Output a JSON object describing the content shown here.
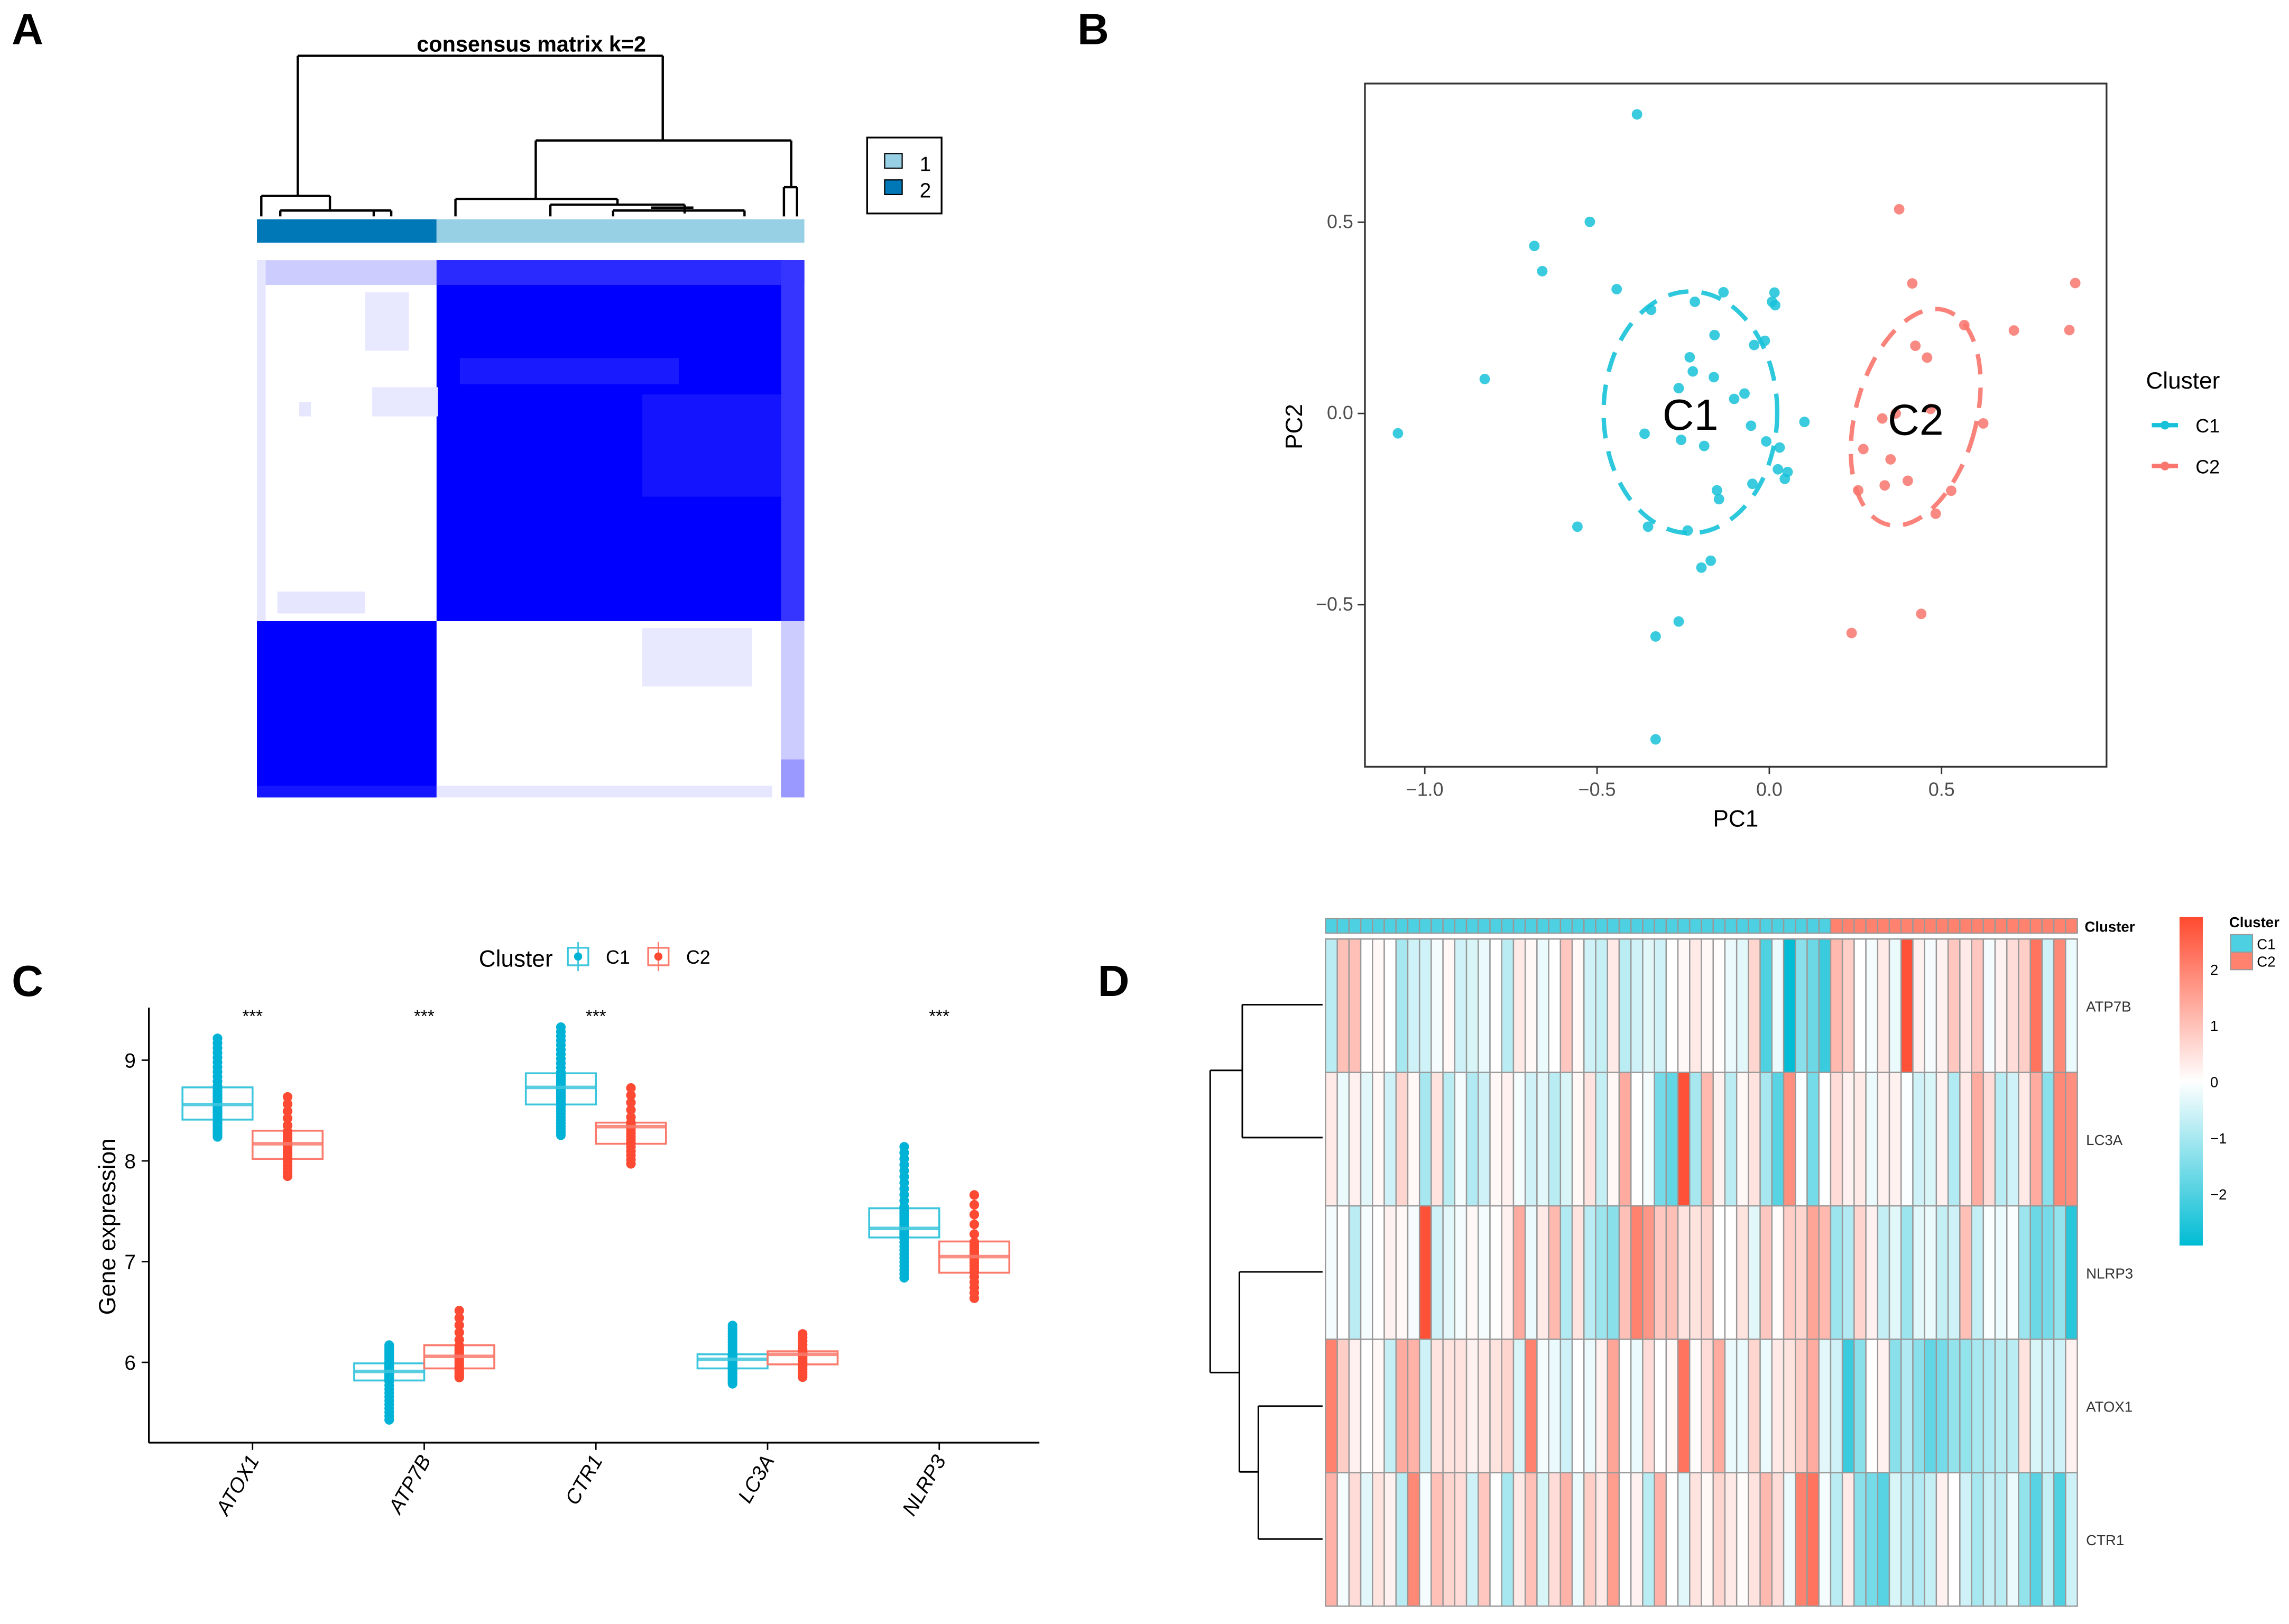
{
  "panels": {
    "a": "A",
    "b": "B",
    "c": "C",
    "d": "D"
  },
  "chart_data": [
    {
      "type": "heatmap",
      "title": "consensus matrix k=2",
      "legend": {
        "items": [
          {
            "label": "1",
            "color": "#97cfe4"
          },
          {
            "label": "2",
            "color": "#0077b6"
          }
        ],
        "placement": "right"
      },
      "cluster_order": [
        "2",
        "1"
      ],
      "cluster_sizes": {
        "1": 43,
        "2": 21
      },
      "color_high": "#0000ff",
      "color_low": "#ffffff"
    },
    {
      "type": "scatter",
      "xlabel": "PC1",
      "ylabel": "PC2",
      "xlim": [
        -1.17,
        0.98
      ],
      "ylim": [
        -0.93,
        0.86
      ],
      "x_ticks": [
        "−1.0",
        "−0.5",
        "0.0",
        "0.5"
      ],
      "x_tick_values": [
        -1.0,
        -0.5,
        0.0,
        0.5
      ],
      "y_ticks": [
        "−0.5",
        "0.0",
        "0.5"
      ],
      "y_tick_values": [
        -0.5,
        0.0,
        0.5
      ],
      "legend": {
        "title": "Cluster",
        "placement": "right",
        "items": [
          "C1",
          "C2"
        ]
      },
      "colors": {
        "C1": "#17c2d9",
        "C2": "#f8766d"
      },
      "grid": false,
      "series": [
        {
          "name": "C1",
          "label": "C1",
          "ellipse": {
            "cx": -0.229,
            "cy": 0.003,
            "rx": 0.252,
            "ry": 0.316,
            "angle": 0
          },
          "points": [
            [
              -0.384,
              0.782
            ],
            [
              -0.521,
              0.501
            ],
            [
              -0.682,
              0.438
            ],
            [
              -0.659,
              0.372
            ],
            [
              -0.443,
              0.325
            ],
            [
              -0.343,
              0.271
            ],
            [
              -0.216,
              0.292
            ],
            [
              -0.133,
              0.317
            ],
            [
              0.015,
              0.316
            ],
            [
              0.008,
              0.292
            ],
            [
              0.017,
              0.283
            ],
            [
              -0.159,
              0.205
            ],
            [
              -0.044,
              0.179
            ],
            [
              -0.013,
              0.19
            ],
            [
              -0.231,
              0.147
            ],
            [
              -0.222,
              0.11
            ],
            [
              -0.161,
              0.095
            ],
            [
              -0.263,
              0.066
            ],
            [
              -0.102,
              0.038
            ],
            [
              -0.072,
              0.052
            ],
            [
              -0.826,
              0.09
            ],
            [
              -1.078,
              -0.052
            ],
            [
              -0.362,
              -0.053
            ],
            [
              -0.256,
              -0.069
            ],
            [
              -0.189,
              -0.085
            ],
            [
              -0.053,
              -0.032
            ],
            [
              0.102,
              -0.022
            ],
            [
              -0.009,
              -0.073
            ],
            [
              0.03,
              -0.089
            ],
            [
              0.025,
              -0.146
            ],
            [
              0.053,
              -0.153
            ],
            [
              0.045,
              -0.171
            ],
            [
              -0.049,
              -0.184
            ],
            [
              -0.152,
              -0.201
            ],
            [
              -0.146,
              -0.224
            ],
            [
              -0.557,
              -0.296
            ],
            [
              -0.352,
              -0.296
            ],
            [
              -0.237,
              -0.306
            ],
            [
              -0.17,
              -0.385
            ],
            [
              -0.197,
              -0.403
            ],
            [
              -0.263,
              -0.544
            ],
            [
              -0.33,
              -0.583
            ],
            [
              -0.33,
              -0.852
            ]
          ]
        },
        {
          "name": "C2",
          "label": "C2",
          "ellipse": {
            "cx": 0.425,
            "cy": -0.01,
            "rx": 0.175,
            "ry": 0.29,
            "angle": 15
          },
          "points": [
            [
              0.377,
              0.534
            ],
            [
              0.415,
              0.34
            ],
            [
              0.888,
              0.341
            ],
            [
              0.566,
              0.231
            ],
            [
              0.71,
              0.217
            ],
            [
              0.871,
              0.218
            ],
            [
              0.424,
              0.177
            ],
            [
              0.458,
              0.146
            ],
            [
              0.367,
              0.0
            ],
            [
              0.328,
              -0.013
            ],
            [
              0.468,
              0.012
            ],
            [
              0.621,
              -0.026
            ],
            [
              0.273,
              -0.093
            ],
            [
              0.352,
              -0.12
            ],
            [
              0.258,
              -0.201
            ],
            [
              0.335,
              -0.188
            ],
            [
              0.402,
              -0.176
            ],
            [
              0.528,
              -0.202
            ],
            [
              0.483,
              -0.262
            ],
            [
              0.441,
              -0.524
            ],
            [
              0.239,
              -0.574
            ]
          ]
        }
      ]
    },
    {
      "type": "box",
      "ylabel": "Gene expression",
      "xlabel": "",
      "ylim": [
        5.2,
        9.5
      ],
      "y_ticks": [
        "6",
        "7",
        "8",
        "9"
      ],
      "y_tick_values": [
        6,
        7,
        8,
        9
      ],
      "categories": [
        "ATOX1",
        "ATP7B",
        "CTR1",
        "LC3A",
        "NLRP3"
      ],
      "significance": [
        "***",
        "***",
        "***",
        "",
        "***"
      ],
      "legend": {
        "title": "Cluster",
        "placement": "top",
        "items": [
          "C1",
          "C2"
        ]
      },
      "colors": {
        "C1": "#00b2d6",
        "C2": "#ff4a33",
        "C1_box": "#3cc6dd",
        "C2_box": "#fa7a6c"
      },
      "series": [
        {
          "name": "C1",
          "n": 43,
          "stats": [
            {
              "min": 8.23,
              "q1": 8.41,
              "median": 8.56,
              "q3": 8.73,
              "max": 9.24
            },
            {
              "min": 5.41,
              "q1": 5.82,
              "median": 5.91,
              "q3": 5.99,
              "max": 6.18
            },
            {
              "min": 8.24,
              "q1": 8.56,
              "median": 8.73,
              "q3": 8.87,
              "max": 9.35
            },
            {
              "min": 5.78,
              "q1": 5.94,
              "median": 6.03,
              "q3": 6.08,
              "max": 6.38
            },
            {
              "min": 6.82,
              "q1": 7.24,
              "median": 7.33,
              "q3": 7.53,
              "max": 8.17
            }
          ]
        },
        {
          "name": "C2",
          "n": 21,
          "stats": [
            {
              "min": 7.83,
              "q1": 8.02,
              "median": 8.17,
              "q3": 8.3,
              "max": 8.67
            },
            {
              "min": 5.84,
              "q1": 5.94,
              "median": 6.06,
              "q3": 6.17,
              "max": 6.55
            },
            {
              "min": 7.95,
              "q1": 8.17,
              "median": 8.34,
              "q3": 8.38,
              "max": 8.76
            },
            {
              "min": 5.84,
              "q1": 5.98,
              "median": 6.08,
              "q3": 6.11,
              "max": 6.3
            },
            {
              "min": 6.61,
              "q1": 6.89,
              "median": 7.05,
              "q3": 7.2,
              "max": 7.71
            }
          ]
        }
      ]
    },
    {
      "type": "heatmap",
      "annotation_title": "Cluster",
      "legend": {
        "title": "Cluster",
        "items": [
          "C1",
          "C2"
        ],
        "colors": {
          "C1": "#4dd0e1",
          "C2": "#ff826e"
        },
        "placement": "top-right"
      },
      "colorbar": {
        "ticks": [
          "2",
          "1",
          "0",
          "−1",
          "−2"
        ],
        "tick_values": [
          2,
          1,
          0,
          -1,
          -2
        ],
        "range": [
          -2.6,
          2.6
        ],
        "low": "#00bcd4",
        "mid": "#ffffff",
        "high": "#ff4a2f"
      },
      "clusters": {
        "C1": 43,
        "C2": 21
      },
      "rows": [
        "ATP7B",
        "LC3A",
        "NLRP3",
        "ATOX1",
        "CTR1"
      ],
      "values": [
        [
          -0.7,
          0.9,
          0.9,
          0,
          0.1,
          0,
          -0.9,
          -0.5,
          -0.5,
          -0.1,
          0.1,
          -0.5,
          -0.4,
          -0.2,
          0,
          -0.7,
          0.3,
          0.1,
          -0.2,
          0,
          0.8,
          0.1,
          -0.5,
          -0.6,
          0.3,
          -0.7,
          -0.5,
          -0.3,
          -0.5,
          0,
          0.1,
          0.3,
          0.1,
          0.05,
          -0.2,
          -0.3,
          0.6,
          -1.8,
          -0.2,
          -2.6,
          -1.2,
          -1.5,
          -2.0,
          1.0,
          0.7,
          0,
          -0.1,
          0.3,
          -0.2,
          2.5,
          0.2,
          -0.1,
          0.2,
          0.8,
          0.3,
          0.8,
          -0.1,
          0.2,
          0.5,
          0.7,
          2.0,
          -0.5,
          1.7,
          -0.2
        ],
        [
          0.3,
          -0.2,
          0.2,
          -0.3,
          0.1,
          -0.5,
          0.6,
          0.1,
          -0.9,
          0.4,
          -0.7,
          -0.1,
          -0.8,
          -0.5,
          0.1,
          0.2,
          -0.1,
          -0.5,
          -0.3,
          -0.7,
          -0.4,
          0.1,
          0.4,
          -0.6,
          0.1,
          1.2,
          0,
          -0.1,
          -1.4,
          -1.6,
          2.5,
          -0.9,
          1.0,
          0.2,
          -0.7,
          0.1,
          0.4,
          -0.9,
          -1.7,
          1.6,
          -0.05,
          -1.4,
          0,
          0.5,
          0.2,
          0.3,
          -0.2,
          0.2,
          0.2,
          -0.05,
          -0.5,
          -0.4,
          0.2,
          -0.8,
          0.3,
          1.2,
          0.5,
          -0.7,
          -0.5,
          0.3,
          1.2,
          -1.2,
          1.7,
          1.6
        ],
        [
          -0.1,
          0,
          -0.7,
          -0.1,
          0,
          0.2,
          0.1,
          -0.1,
          2.5,
          -0.5,
          -0.3,
          -0.1,
          0.1,
          -0.1,
          0,
          0.2,
          1.2,
          -0.2,
          0.3,
          1.0,
          -0.8,
          0.4,
          -0.7,
          -1.0,
          -1.2,
          0.9,
          1.8,
          1.5,
          0.8,
          0.9,
          0.4,
          0.4,
          0.6,
          0,
          0,
          0.4,
          -0.3,
          0.8,
          0.05,
          0.7,
          0.6,
          1.3,
          1.0,
          -1.0,
          -0.8,
          0.6,
          0.2,
          -0.6,
          -0.3,
          -1.0,
          -0.3,
          -0.2,
          -0.6,
          -0.5,
          0.9,
          -0.6,
          -0.05,
          -0.2,
          -0.05,
          -1.0,
          -1.5,
          -1.4,
          -1.1,
          -2.2
        ],
        [
          1.8,
          0.7,
          0.2,
          0,
          0.1,
          -0.6,
          1.2,
          1.1,
          -0.5,
          0.4,
          0.4,
          0.4,
          0.2,
          0.3,
          0.4,
          0.6,
          -0.4,
          1.8,
          -0.1,
          -0.2,
          -0.5,
          0,
          -0.2,
          0.2,
          1.3,
          0,
          -0.2,
          0.5,
          0,
          0.1,
          2.0,
          0.05,
          0.5,
          1.2,
          -0.2,
          -0.2,
          0.6,
          -0.2,
          0.3,
          0.4,
          0.7,
          1.2,
          -0.3,
          -0.5,
          -2.0,
          -1.2,
          0,
          0.2,
          -1.2,
          -0.8,
          -1.2,
          -1.6,
          -1.4,
          -1.1,
          -1.1,
          -0.9,
          -0.8,
          -0.7,
          -0.7,
          0.4,
          -0.4,
          -0.5,
          -0.5,
          0.2
        ],
        [
          1.1,
          -0.1,
          0.5,
          -0.3,
          0.4,
          0.2,
          -0.7,
          1.7,
          -0.1,
          0.9,
          0.6,
          0.5,
          -0.5,
          0.8,
          0,
          -0.9,
          0.3,
          0.9,
          -0.4,
          0.5,
          1.1,
          -0.2,
          0.7,
          0.3,
          1.4,
          0,
          0.2,
          -0.7,
          1.1,
          0,
          -0.3,
          0.4,
          0.1,
          0.6,
          0.3,
          0.05,
          0.4,
          1.0,
          0.5,
          -0.2,
          1.8,
          2.0,
          -0.1,
          -0.7,
          0.3,
          -1.2,
          -1.4,
          -1.7,
          -0.4,
          -0.7,
          -0.8,
          -0.6,
          0.2,
          0,
          -0.5,
          -0.9,
          -0.6,
          -0.7,
          -0.2,
          -1.1,
          -1.7,
          -0.6,
          -1.8,
          -0.5
        ]
      ]
    }
  ]
}
